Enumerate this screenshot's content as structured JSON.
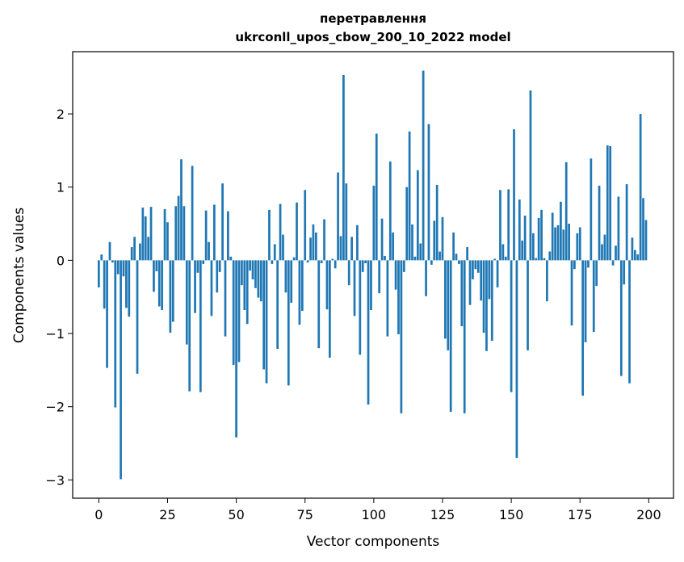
{
  "chart_data": {
    "type": "bar",
    "title": "перетравлення",
    "subtitle": "ukrconll_upos_cbow_200_10_2022 model",
    "xlabel": "Vector components",
    "ylabel": "Components values",
    "xlim": [
      -9.5,
      209
    ],
    "ylim": [
      -3.25,
      2.85
    ],
    "xticks": [
      0,
      25,
      50,
      75,
      100,
      125,
      150,
      175,
      200
    ],
    "yticks": [
      -3,
      -2,
      -1,
      0,
      1,
      2
    ],
    "bar_color": "#1f77b4",
    "grid": false,
    "x": [
      0,
      1,
      2,
      3,
      4,
      5,
      6,
      7,
      8,
      9,
      10,
      11,
      12,
      13,
      14,
      15,
      16,
      17,
      18,
      19,
      20,
      21,
      22,
      23,
      24,
      25,
      26,
      27,
      28,
      29,
      30,
      31,
      32,
      33,
      34,
      35,
      36,
      37,
      38,
      39,
      40,
      41,
      42,
      43,
      44,
      45,
      46,
      47,
      48,
      49,
      50,
      51,
      52,
      53,
      54,
      55,
      56,
      57,
      58,
      59,
      60,
      61,
      62,
      63,
      64,
      65,
      66,
      67,
      68,
      69,
      70,
      71,
      72,
      73,
      74,
      75,
      76,
      77,
      78,
      79,
      80,
      81,
      82,
      83,
      84,
      85,
      86,
      87,
      88,
      89,
      90,
      91,
      92,
      93,
      94,
      95,
      96,
      97,
      98,
      99,
      100,
      101,
      102,
      103,
      104,
      105,
      106,
      107,
      108,
      109,
      110,
      111,
      112,
      113,
      114,
      115,
      116,
      117,
      118,
      119,
      120,
      121,
      122,
      123,
      124,
      125,
      126,
      127,
      128,
      129,
      130,
      131,
      132,
      133,
      134,
      135,
      136,
      137,
      138,
      139,
      140,
      141,
      142,
      143,
      144,
      145,
      146,
      147,
      148,
      149,
      150,
      151,
      152,
      153,
      154,
      155,
      156,
      157,
      158,
      159,
      160,
      161,
      162,
      163,
      164,
      165,
      166,
      167,
      168,
      169,
      170,
      171,
      172,
      173,
      174,
      175,
      176,
      177,
      178,
      179,
      180,
      181,
      182,
      183,
      184,
      185,
      186,
      187,
      188,
      189,
      190,
      191,
      192,
      193,
      194,
      195,
      196,
      197,
      198,
      199
    ],
    "values": [
      -0.37,
      0.08,
      -0.66,
      -1.47,
      0.25,
      -0.03,
      -2.01,
      -0.19,
      -2.99,
      -0.22,
      -0.65,
      -0.77,
      0.18,
      0.32,
      -1.55,
      0.23,
      0.72,
      0.6,
      0.32,
      0.73,
      -0.43,
      -0.15,
      -0.63,
      -0.68,
      0.7,
      0.52,
      -0.99,
      -0.84,
      0.74,
      0.88,
      1.38,
      0.74,
      -1.15,
      -1.79,
      1.29,
      -0.72,
      -0.17,
      -1.8,
      -0.05,
      0.68,
      0.25,
      -0.76,
      0.76,
      -0.44,
      -0.16,
      1.05,
      -1.04,
      0.67,
      0.05,
      -1.43,
      -2.42,
      -1.39,
      -0.34,
      -0.68,
      -0.87,
      -0.14,
      -0.26,
      -0.38,
      -0.51,
      -0.56,
      -1.49,
      -1.68,
      0.69,
      -0.05,
      0.22,
      -1.21,
      0.77,
      0.35,
      -0.44,
      -1.71,
      -0.58,
      0.04,
      0.79,
      -0.88,
      -0.69,
      0.96,
      -0.03,
      0.31,
      0.49,
      0.38,
      -1.2,
      -0.04,
      0.56,
      -0.67,
      -1.33,
      0.02,
      -0.11,
      1.2,
      0.33,
      2.53,
      1.05,
      -0.34,
      0.32,
      -0.76,
      0.48,
      -1.29,
      -0.16,
      -0.04,
      -1.97,
      -0.68,
      1.02,
      1.73,
      -0.45,
      0.57,
      0.06,
      -1.04,
      1.35,
      0.38,
      -0.4,
      -1.01,
      -2.09,
      -0.16,
      1.0,
      1.76,
      0.49,
      0.05,
      1.23,
      0.23,
      2.59,
      -0.49,
      1.86,
      -0.06,
      0.54,
      1.03,
      0.12,
      0.59,
      -1.07,
      -1.23,
      -2.07,
      0.38,
      0.09,
      -0.05,
      -0.9,
      -2.09,
      0.18,
      -0.61,
      -0.26,
      -0.12,
      -0.17,
      -0.55,
      -0.99,
      -1.24,
      -0.53,
      -1.1,
      0.02,
      -0.37,
      0.96,
      0.22,
      0.05,
      0.97,
      -1.8,
      1.79,
      -2.7,
      0.83,
      0.27,
      0.61,
      -1.23,
      2.32,
      0.37,
      0.03,
      0.58,
      0.69,
      0.03,
      -0.56,
      0.12,
      0.65,
      0.45,
      0.48,
      0.8,
      0.42,
      1.34,
      0.5,
      -0.89,
      -0.12,
      0.37,
      0.45,
      -1.85,
      -1.12,
      -0.1,
      1.39,
      -0.98,
      -0.35,
      1.02,
      0.22,
      0.35,
      1.57,
      1.56,
      -0.07,
      0.2,
      0.87,
      -1.58,
      -0.33,
      1.04,
      -1.68,
      0.31,
      0.14,
      0.08,
      2.0,
      0.85,
      0.55
    ]
  }
}
